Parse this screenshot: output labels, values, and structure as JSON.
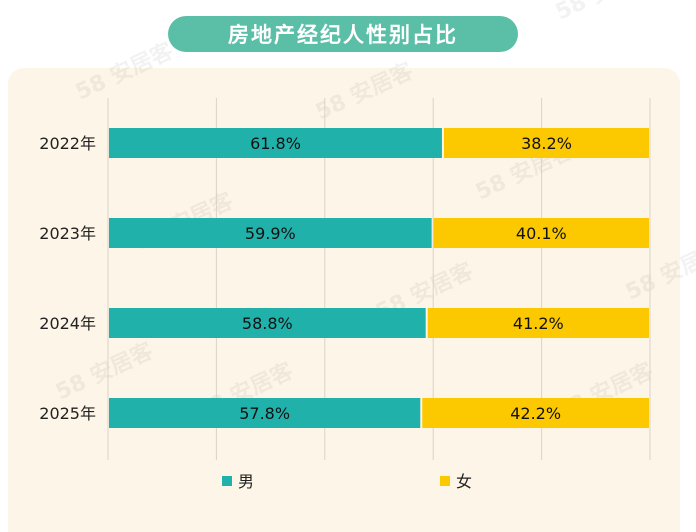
{
  "chart_data": {
    "type": "bar",
    "stacked": true,
    "orientation": "horizontal",
    "title": "房地产经纪人性别占比",
    "categories": [
      "2022年",
      "2023年",
      "2024年",
      "2025年"
    ],
    "series": [
      {
        "name": "男",
        "values": [
          61.8,
          59.9,
          58.8,
          57.8
        ],
        "labels": [
          "61.8%",
          "59.9%",
          "58.8%",
          "57.8%"
        ],
        "color": "#20b2aa"
      },
      {
        "name": "女",
        "values": [
          38.2,
          40.1,
          41.2,
          42.2
        ],
        "labels": [
          "38.2%",
          "40.1%",
          "41.2%",
          "42.2%"
        ],
        "color": "#fcc800"
      }
    ],
    "xlim": [
      0,
      100
    ],
    "grid": true,
    "legend": "bottom",
    "watermark": "58 安居客"
  }
}
